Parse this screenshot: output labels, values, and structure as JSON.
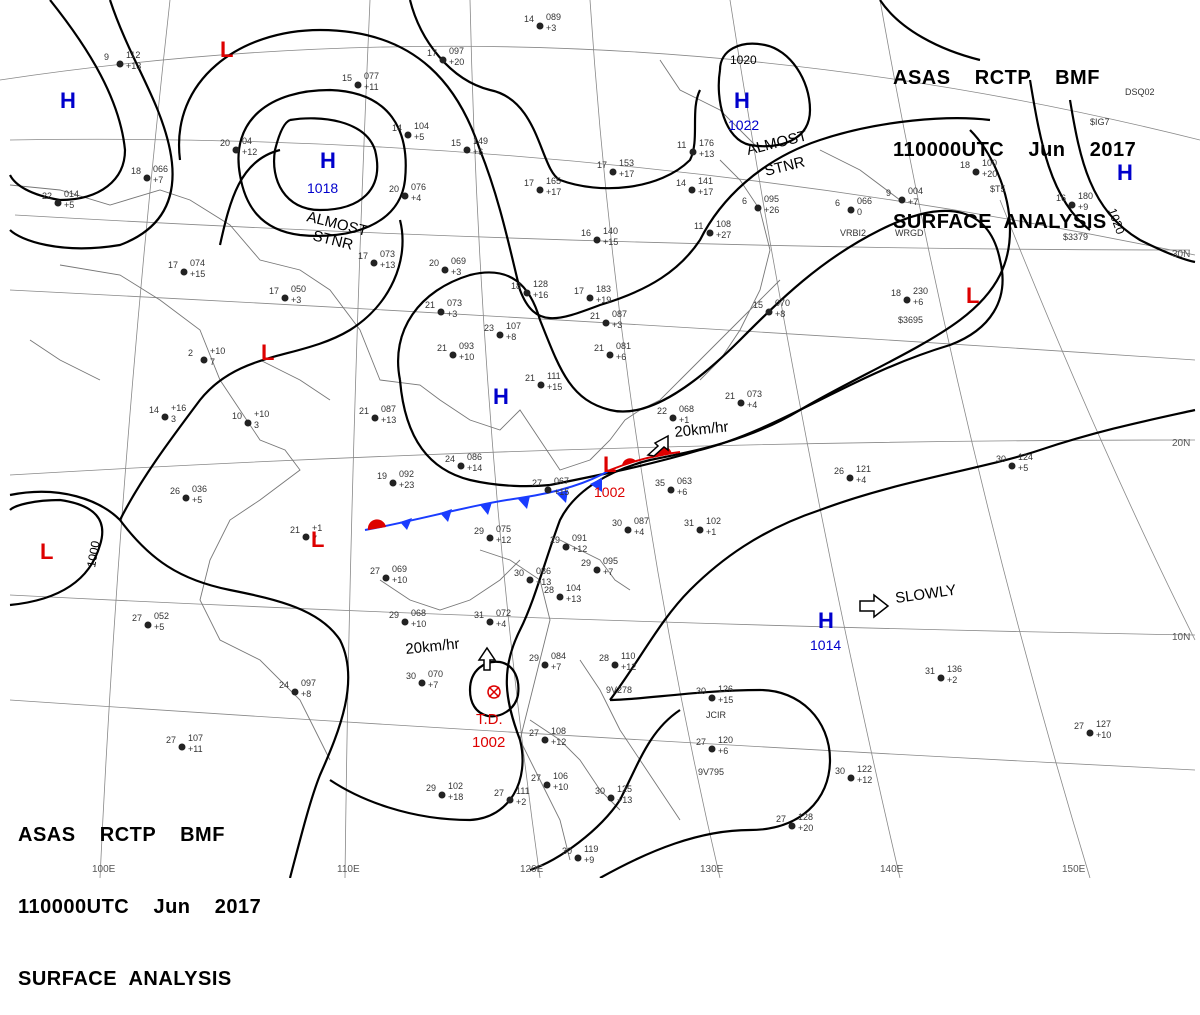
{
  "header_top": {
    "line1": "ASAS    RCTP    BMF",
    "line2": "110000UTC    Jun    2017",
    "line3": "SURFACE  ANALYSIS"
  },
  "header_bottom": {
    "line1": "ASAS    RCTP    BMF",
    "line2": "110000UTC    Jun    2017",
    "line3": "SURFACE  ANALYSIS"
  },
  "pressure_systems": {
    "h_1018": {
      "letter": "H",
      "value": "1018",
      "color": "#0000cc"
    },
    "h_1022": {
      "letter": "H",
      "value": "1022",
      "color": "#0000cc"
    },
    "h_1014": {
      "letter": "H",
      "value": "1014",
      "color": "#0000cc"
    },
    "h_west": {
      "letter": "H",
      "color": "#0000cc"
    },
    "h_east": {
      "letter": "H",
      "color": "#0000cc"
    },
    "h_china": {
      "letter": "H",
      "color": "#0000cc"
    },
    "l_1002": {
      "letter": "L",
      "value": "1002",
      "color": "#dd0000"
    },
    "l_nw": {
      "letter": "L",
      "color": "#dd0000"
    },
    "l_mid": {
      "letter": "L",
      "color": "#dd0000"
    },
    "l_sw": {
      "letter": "L",
      "color": "#dd0000"
    },
    "l_west": {
      "letter": "L",
      "color": "#dd0000"
    },
    "l_east": {
      "letter": "L",
      "color": "#dd0000"
    },
    "td": {
      "label": "T.D.",
      "value": "1002",
      "color": "#dd0000"
    }
  },
  "annotations": {
    "almost_stnr_1": "ALMOST",
    "stnr_1": "STNR",
    "almost_stnr_2": "ALMOST",
    "stnr_2": "STNR",
    "speed_1": "20km/hr",
    "speed_2": "20km/hr",
    "slowly": "SLOWLY"
  },
  "isobar_labels": {
    "i1020_a": "1020",
    "i1020_b": "1020",
    "i1000": "1000"
  },
  "grid_labels": {
    "lat30": "30N",
    "lat20": "20N",
    "lat10": "10N",
    "lon110": "110E",
    "lon120": "120E",
    "lon130": "130E",
    "lon140": "140E",
    "lon150": "150E",
    "lon100": "100E"
  },
  "stations": [
    {
      "t": "14",
      "p": "089",
      "d": "+3"
    },
    {
      "t": "9",
      "p": "112",
      "d": "+13"
    },
    {
      "t": "17",
      "p": "097",
      "d": "+20"
    },
    {
      "t": "15",
      "p": "077",
      "d": "+11"
    },
    {
      "t": "20",
      "p": "04",
      "d": "+12"
    },
    {
      "t": "14",
      "p": "104",
      "d": "+5"
    },
    {
      "t": "15",
      "p": "149",
      "d": "+6"
    },
    {
      "t": "18",
      "p": "066",
      "d": "+7"
    },
    {
      "t": "20",
      "p": "076",
      "d": "+4"
    },
    {
      "t": "17",
      "p": "153",
      "d": "+17"
    },
    {
      "t": "17",
      "p": "165",
      "d": "+17"
    },
    {
      "t": "11",
      "p": "176",
      "d": "+13"
    },
    {
      "t": "14",
      "p": "141",
      "d": "+17"
    },
    {
      "t": "22",
      "p": "014",
      "d": "+5"
    },
    {
      "t": "17",
      "p": "073",
      "d": "+13"
    },
    {
      "t": "20",
      "p": "069",
      "d": "+3"
    },
    {
      "t": "17",
      "p": "074",
      "d": "+15"
    },
    {
      "t": "16",
      "p": "140",
      "d": "+15"
    },
    {
      "t": "11",
      "p": "108",
      "d": "+27"
    },
    {
      "t": "6",
      "p": "095",
      "d": "+26"
    },
    {
      "t": "6",
      "p": "066",
      "d": "0"
    },
    {
      "t": "9",
      "p": "004",
      "d": "+7"
    },
    {
      "t": "18",
      "p": "100",
      "d": "+20"
    },
    {
      "t": "16",
      "p": "180",
      "d": "+9"
    },
    {
      "t": "17",
      "p": "050",
      "d": "+3"
    },
    {
      "t": "21",
      "p": "073",
      "d": "+3"
    },
    {
      "t": "18",
      "p": "128",
      "d": "+16"
    },
    {
      "t": "17",
      "p": "183",
      "d": "+19"
    },
    {
      "t": "15",
      "p": "070",
      "d": "+8"
    },
    {
      "t": "18",
      "p": "230",
      "d": "+6"
    },
    {
      "t": "21",
      "p": "087",
      "d": "+3"
    },
    {
      "t": "23",
      "p": "107",
      "d": "+8"
    },
    {
      "t": "21",
      "p": "081",
      "d": "+6"
    },
    {
      "t": "2",
      "p": "+10",
      "d": "7"
    },
    {
      "t": "21",
      "p": "093",
      "d": "+10"
    },
    {
      "t": "14",
      "p": "+16",
      "d": "3"
    },
    {
      "t": "10",
      "p": "+10",
      "d": "3"
    },
    {
      "t": "21",
      "p": "087",
      "d": "+13"
    },
    {
      "t": "21",
      "p": "111",
      "d": "+15"
    },
    {
      "t": "22",
      "p": "068",
      "d": "+1"
    },
    {
      "t": "21",
      "p": "073",
      "d": "+4"
    },
    {
      "t": "24",
      "p": "086",
      "d": "+14"
    },
    {
      "t": "30",
      "p": "124",
      "d": "+5"
    },
    {
      "t": "26",
      "p": "121",
      "d": "+4"
    },
    {
      "t": "26",
      "p": "036",
      "d": "+5"
    },
    {
      "t": "19",
      "p": "092",
      "d": "+23"
    },
    {
      "t": "27",
      "p": "067",
      "d": "+15"
    },
    {
      "t": "35",
      "p": "063",
      "d": "+6"
    },
    {
      "t": "30",
      "p": "087",
      "d": "+4"
    },
    {
      "t": "31",
      "p": "102",
      "d": "+1"
    },
    {
      "t": "21",
      "p": "+1",
      "d": "7"
    },
    {
      "t": "29",
      "p": "075",
      "d": "+12"
    },
    {
      "t": "29",
      "p": "091",
      "d": "+12"
    },
    {
      "t": "29",
      "p": "095",
      "d": "+7"
    },
    {
      "t": "27",
      "p": "069",
      "d": "+10"
    },
    {
      "t": "30",
      "p": "086",
      "d": "+13"
    },
    {
      "t": "28",
      "p": "104",
      "d": "+13"
    },
    {
      "t": "29",
      "p": "068",
      "d": "+10"
    },
    {
      "t": "31",
      "p": "072",
      "d": "+4"
    },
    {
      "t": "27",
      "p": "052",
      "d": "+5"
    },
    {
      "t": "24",
      "p": "097",
      "d": "+8"
    },
    {
      "t": "30",
      "p": "070",
      "d": "+7"
    },
    {
      "t": "29",
      "p": "084",
      "d": "+7"
    },
    {
      "t": "28",
      "p": "110",
      "d": "+12"
    },
    {
      "t": "30",
      "p": "126",
      "d": "+15"
    },
    {
      "t": "31",
      "p": "136",
      "d": "+2"
    },
    {
      "t": "27",
      "p": "127",
      "d": "+10"
    },
    {
      "t": "27",
      "p": "107",
      "d": "+11"
    },
    {
      "t": "27",
      "p": "108",
      "d": "+12"
    },
    {
      "t": "27",
      "p": "120",
      "d": "+6"
    },
    {
      "t": "30",
      "p": "122",
      "d": "+12"
    },
    {
      "t": "29",
      "p": "102",
      "d": "+18"
    },
    {
      "t": "27",
      "p": "111",
      "d": "+2"
    },
    {
      "t": "27",
      "p": "106",
      "d": "+10"
    },
    {
      "t": "30",
      "p": "125",
      "d": "+13"
    },
    {
      "t": "27",
      "p": "128",
      "d": "+20"
    },
    {
      "t": "30",
      "p": "119",
      "d": "+9"
    }
  ],
  "ship_codes": [
    "VRBI2",
    "WRGD",
    "$3695",
    "$3379",
    "9V278",
    "JCIR",
    "9V795",
    "DSQ02",
    "$IG7",
    "$T5"
  ]
}
